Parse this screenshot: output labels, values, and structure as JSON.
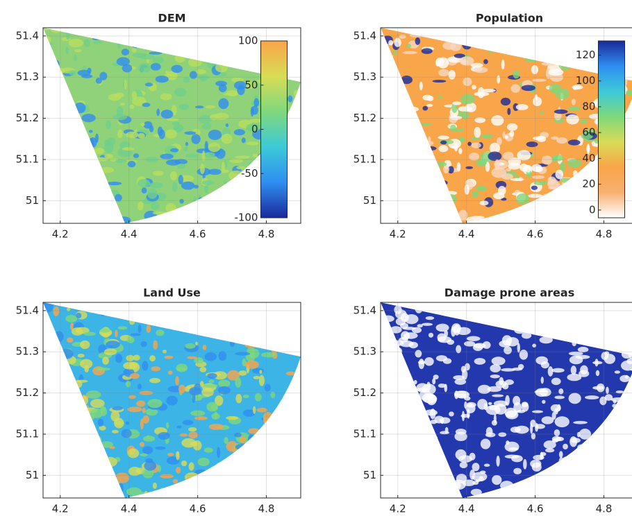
{
  "chart_data": [
    {
      "type": "map",
      "title": "DEM",
      "xlim": [
        4.15,
        4.9
      ],
      "ylim": [
        50.945,
        51.42
      ],
      "xticks": [
        4.2,
        4.4,
        4.6,
        4.8
      ],
      "yticks": [
        51,
        51.1,
        51.2,
        51.3,
        51.4
      ],
      "grid": true,
      "fill": "#8fd27a",
      "colorbar": {
        "clim": [
          -100,
          100
        ],
        "ticks": [
          -100,
          -50,
          0,
          50,
          100
        ],
        "colors": [
          "#1a2a9a",
          "#2f8ef0",
          "#3cc9d8",
          "#7fd87c",
          "#d8dc56",
          "#f9a548"
        ]
      }
    },
    {
      "type": "map",
      "title": "Population",
      "xlim": [
        4.15,
        4.9
      ],
      "ylim": [
        50.945,
        51.42
      ],
      "xticks": [
        4.2,
        4.4,
        4.6,
        4.8
      ],
      "yticks": [
        51,
        51.1,
        51.2,
        51.3,
        51.4
      ],
      "grid": true,
      "fill": "#f9a54a",
      "colorbar": {
        "clim": [
          -6,
          131
        ],
        "ticks": [
          0,
          20,
          40,
          60,
          80,
          100,
          120
        ],
        "colors": [
          "#ffffff",
          "#f8b070",
          "#f9a548",
          "#d8dc56",
          "#7fd87c",
          "#3cc9d8",
          "#2f8ef0",
          "#1a2a9a"
        ]
      }
    },
    {
      "type": "map",
      "title": "Land Use",
      "xlim": [
        4.15,
        4.9
      ],
      "ylim": [
        50.945,
        51.42
      ],
      "xticks": [
        4.2,
        4.4,
        4.6,
        4.8
      ],
      "yticks": [
        51,
        51.1,
        51.2,
        51.3,
        51.4
      ],
      "grid": true,
      "fill": "#3cb4e6"
    },
    {
      "type": "map",
      "title": "Damage prone areas",
      "xlim": [
        4.15,
        4.9
      ],
      "ylim": [
        50.945,
        51.42
      ],
      "xticks": [
        4.2,
        4.4,
        4.6,
        4.8
      ],
      "yticks": [
        51,
        51.1,
        51.2,
        51.3,
        51.4
      ],
      "grid": true,
      "fill": "#2338ad"
    }
  ]
}
